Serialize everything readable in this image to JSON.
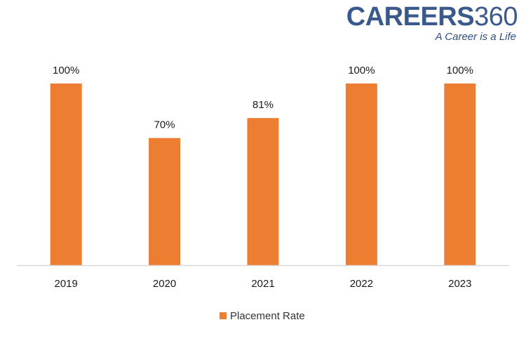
{
  "brand": {
    "name_letters": "CAREERS",
    "name_number": "360",
    "tagline": "A Career is a Life",
    "color": "#3a5a8c"
  },
  "chart_data": {
    "type": "bar",
    "categories": [
      "2019",
      "2020",
      "2021",
      "2022",
      "2023"
    ],
    "series": [
      {
        "name": "Placement Rate",
        "values": [
          100,
          70,
          81,
          100,
          100
        ],
        "data_labels": [
          "100%",
          "70%",
          "81%",
          "100%",
          "100%"
        ],
        "color": "#ed7d31"
      }
    ],
    "title": "",
    "xlabel": "",
    "ylabel": "",
    "ylim": [
      0,
      100
    ],
    "grid": false,
    "legend_position": "bottom",
    "axis_color": "#d9d9d9"
  }
}
